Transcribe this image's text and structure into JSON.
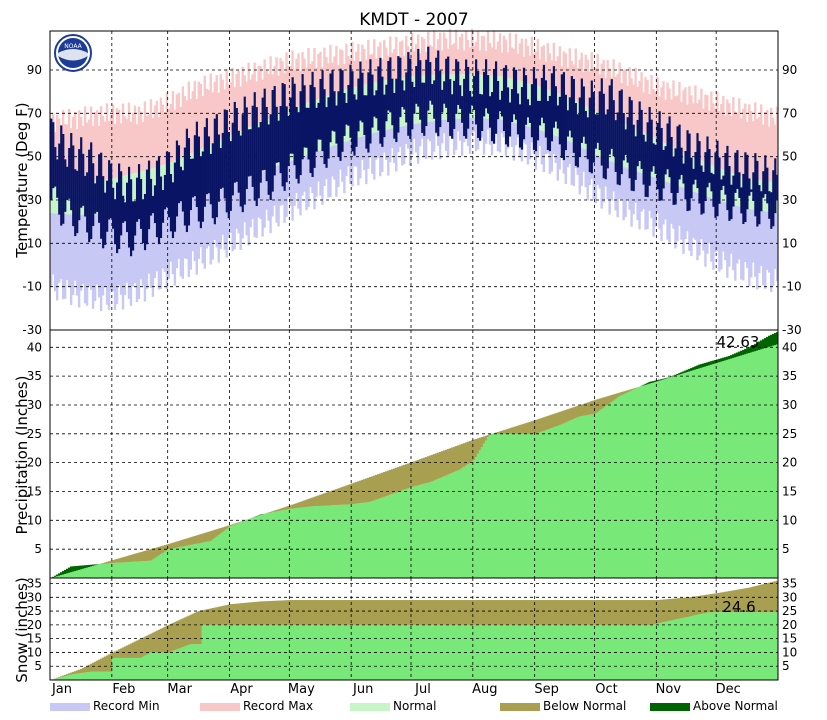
{
  "chart_data": [
    {
      "type": "area",
      "panel": "temperature",
      "title": "KMDT - 2007",
      "ylabel": "Temperature (Deg F)",
      "ylim": [
        -30,
        108
      ],
      "yticks": [
        -30,
        -10,
        10,
        30,
        50,
        70,
        90
      ],
      "grid": true,
      "logo": "NOAA",
      "x_categories": [
        "Jan",
        "Feb",
        "Mar",
        "Apr",
        "May",
        "Jun",
        "Jul",
        "Aug",
        "Sep",
        "Oct",
        "Nov",
        "Dec"
      ],
      "series": [
        {
          "name": "Record Min",
          "color": "#c8c8f5",
          "days": [
            0,
            15,
            31,
            45,
            59,
            74,
            90,
            105,
            120,
            135,
            151,
            166,
            181,
            196,
            212,
            227,
            243,
            258,
            273,
            288,
            304,
            319,
            334,
            349,
            364
          ],
          "low": [
            -10,
            -14,
            -16,
            -12,
            -5,
            2,
            10,
            18,
            26,
            33,
            41,
            46,
            52,
            55,
            57,
            56,
            50,
            43,
            33,
            25,
            18,
            10,
            2,
            -4,
            -8
          ],
          "high": [
            20,
            19,
            20,
            22,
            25,
            29,
            33,
            37,
            42,
            47,
            52,
            56,
            60,
            62,
            64,
            63,
            59,
            54,
            49,
            43,
            38,
            33,
            28,
            23,
            21
          ]
        },
        {
          "name": "Normal",
          "color": "#c8f5c8",
          "days": [
            0,
            15,
            31,
            45,
            59,
            74,
            90,
            105,
            120,
            135,
            151,
            166,
            181,
            196,
            212,
            227,
            243,
            258,
            273,
            288,
            304,
            319,
            334,
            349,
            364
          ],
          "low": [
            24,
            23,
            24,
            26,
            29,
            33,
            38,
            43,
            48,
            53,
            58,
            62,
            65,
            67,
            68,
            67,
            63,
            58,
            51,
            45,
            40,
            35,
            30,
            26,
            24
          ],
          "high": [
            38,
            38,
            40,
            43,
            47,
            53,
            60,
            66,
            72,
            77,
            82,
            85,
            87,
            88,
            88,
            87,
            83,
            78,
            71,
            65,
            58,
            51,
            45,
            40,
            38
          ]
        },
        {
          "name": "Record Max",
          "color": "#f8c8c8",
          "days": [
            0,
            15,
            31,
            45,
            59,
            74,
            90,
            105,
            120,
            135,
            151,
            166,
            181,
            196,
            212,
            227,
            243,
            258,
            273,
            288,
            304,
            319,
            334,
            349,
            364
          ],
          "high": [
            66,
            68,
            70,
            70,
            75,
            82,
            86,
            90,
            94,
            96,
            98,
            100,
            102,
            104,
            104,
            103,
            100,
            96,
            93,
            88,
            82,
            79,
            75,
            71,
            68
          ]
        },
        {
          "name": "Observed",
          "color": "#0a1464",
          "days": [
            0,
            10,
            20,
            30,
            40,
            50,
            60,
            70,
            80,
            90,
            100,
            110,
            120,
            130,
            140,
            150,
            160,
            170,
            180,
            190,
            200,
            210,
            220,
            230,
            240,
            250,
            260,
            270,
            280,
            290,
            300,
            310,
            320,
            330,
            340,
            350,
            364
          ],
          "low": [
            30,
            22,
            18,
            14,
            12,
            16,
            20,
            24,
            26,
            30,
            34,
            38,
            44,
            48,
            54,
            58,
            60,
            64,
            66,
            68,
            66,
            66,
            64,
            62,
            60,
            60,
            54,
            50,
            46,
            42,
            38,
            36,
            32,
            30,
            28,
            26,
            24
          ],
          "high": [
            60,
            52,
            48,
            40,
            36,
            40,
            46,
            56,
            60,
            66,
            70,
            74,
            78,
            80,
            82,
            84,
            86,
            88,
            90,
            92,
            88,
            86,
            86,
            84,
            82,
            84,
            80,
            76,
            78,
            70,
            64,
            60,
            54,
            50,
            46,
            44,
            40
          ]
        }
      ]
    },
    {
      "type": "area",
      "panel": "precipitation",
      "ylabel": "Precipitation (Inches)",
      "ylim": [
        0,
        43
      ],
      "yticks": [
        5,
        10,
        15,
        20,
        25,
        30,
        35,
        40
      ],
      "grid": true,
      "annotation": "42.63",
      "series": [
        {
          "name": "Normal",
          "days": [
            0,
            31,
            59,
            90,
            120,
            151,
            181,
            212,
            243,
            273,
            304,
            334,
            364
          ],
          "values": [
            0,
            3.1,
            5.9,
            9.2,
            12.6,
            16.4,
            20.1,
            24.0,
            27.4,
            30.9,
            34.1,
            37.3,
            40.5
          ]
        },
        {
          "name": "Observed",
          "days": [
            0,
            10,
            20,
            31,
            50,
            59,
            80,
            90,
            105,
            120,
            130,
            151,
            160,
            181,
            190,
            205,
            212,
            220,
            243,
            255,
            265,
            273,
            285,
            300,
            310,
            325,
            340,
            350,
            360,
            364
          ],
          "values": [
            0,
            2.0,
            2.3,
            2.6,
            3.0,
            5.0,
            6.4,
            9.0,
            11.0,
            12.0,
            12.4,
            12.8,
            13.2,
            15.8,
            16.6,
            18.8,
            20.4,
            25.0,
            25.0,
            26.5,
            28.0,
            28.5,
            31.5,
            34.0,
            34.8,
            37.0,
            38.5,
            40.0,
            42.0,
            42.63
          ]
        }
      ]
    },
    {
      "type": "area",
      "panel": "snow",
      "ylabel": "Snow (inches)",
      "ylim": [
        0,
        37
      ],
      "yticks": [
        5,
        10,
        15,
        20,
        25,
        30,
        35
      ],
      "grid": true,
      "annotation": "24.6",
      "series": [
        {
          "name": "Normal",
          "days": [
            0,
            15,
            31,
            45,
            59,
            74,
            90,
            105,
            120,
            304,
            320,
            334,
            350,
            364
          ],
          "values": [
            0,
            4,
            10,
            15,
            20,
            25,
            27.5,
            28.5,
            29,
            29,
            30,
            31.5,
            33.5,
            36
          ]
        },
        {
          "name": "Observed",
          "days": [
            0,
            10,
            20,
            30,
            31,
            45,
            50,
            59,
            70,
            75,
            76,
            300,
            301,
            330,
            364
          ],
          "values": [
            0,
            2,
            3,
            3,
            8,
            8,
            10,
            10,
            13,
            13,
            20,
            20,
            20,
            24.6,
            24.6
          ]
        }
      ]
    }
  ],
  "months": [
    "Jan",
    "Feb",
    "Mar",
    "Apr",
    "May",
    "Jun",
    "Jul",
    "Aug",
    "Sep",
    "Oct",
    "Nov",
    "Dec"
  ],
  "legend": [
    {
      "label": "Record Min",
      "color": "#c8c8f5"
    },
    {
      "label": "Record Max",
      "color": "#f8c8c8"
    },
    {
      "label": "Normal",
      "color": "#c8f5c8"
    },
    {
      "label": "Below Normal",
      "color": "#a8a050"
    },
    {
      "label": "Above Normal",
      "color": "#006400"
    }
  ],
  "colors": {
    "precip_observed": "#78e878",
    "precip_below": "#a8a050",
    "precip_above": "#006400",
    "observed_line": "#0a1464"
  }
}
